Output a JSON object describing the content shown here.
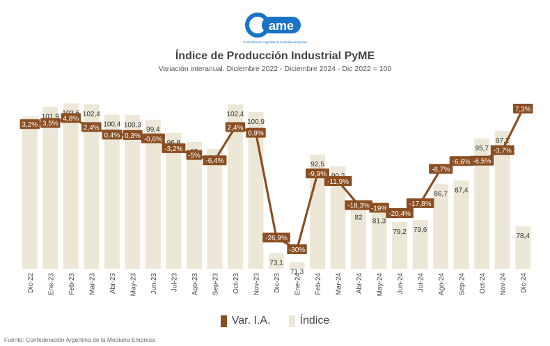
{
  "header": {
    "logo_text": "ame",
    "logo_caption": "Confederación Argentina de la Mediana Empresa",
    "title": "Índice de Producción Industrial PyME",
    "subtitle": "Variación interanual. Diciembre 2022 - Diciembre 2024 - Dic 2022 = 100"
  },
  "footer": {
    "source": "Fuente: Confederación Argentina de la Mediana Empresa"
  },
  "colors": {
    "bar": "#ece7d7",
    "line": "#8a4e22",
    "label_text": "#ffffff",
    "logo": "#1a73c7"
  },
  "chart_data": {
    "type": "bar",
    "categories": [
      "Dic-22",
      "Ene-23",
      "Feb-23",
      "Mar-23",
      "Abr-23",
      "May-23",
      "Jun-23",
      "Jul-23",
      "Ago-23",
      "Sep-23",
      "Oct-23",
      "Nov-23",
      "Dic-23",
      "Ene-24",
      "Feb-24",
      "Mar-24",
      "Abr-24",
      "May-24",
      "Jun-24",
      "Jul-24",
      "Ago-24",
      "Sep-24",
      "Oct-24",
      "Nov-24",
      "Dic-24"
    ],
    "series": [
      {
        "name": "Índice",
        "type": "bar",
        "values": [
          100,
          101.9,
          102.6,
          102.4,
          100.4,
          100.3,
          99.4,
          96.8,
          95,
          93.6,
          102.4,
          100.9,
          73.1,
          71.3,
          92.5,
          90.2,
          82,
          81.3,
          79.2,
          79.6,
          86.7,
          87.4,
          95.7,
          97.2,
          78.4
        ],
        "labels": [
          "100",
          "101,9",
          "102,6",
          "102,4",
          "100,4",
          "100,3",
          "99,4",
          "96,8",
          "95",
          "93,6",
          "102,4",
          "100,9",
          "73,1",
          "71,3",
          "92,5",
          "90,2",
          "82",
          "81,3",
          "79,2",
          "79,6",
          "86,7",
          "87,4",
          "95,7",
          "97,2",
          "78,4"
        ]
      },
      {
        "name": "Var. I.A.",
        "type": "line",
        "values": [
          3.2,
          3.5,
          4.8,
          2.4,
          0.4,
          0.3,
          -0.6,
          -3.2,
          -5,
          -6.4,
          2.4,
          0.9,
          -26.9,
          -30,
          -9.9,
          -11.9,
          -18.3,
          -19,
          -20.4,
          -17.8,
          -8.7,
          -6.6,
          -6.5,
          -3.7,
          7.3
        ],
        "labels": [
          "3,2%",
          "3,5%",
          "4,8%",
          "2,4%",
          "0,4%",
          "0,3%",
          "-0,6%",
          "-3,2%",
          "-5%",
          "-6,4%",
          "2,4%",
          "0,9%",
          "-26,9%",
          "-30%",
          "-9,9%",
          "-11,9%",
          "-18,3%",
          "-19%",
          "-20,4%",
          "-17,8%",
          "-8,7%",
          "-6,6%",
          "-6,5%",
          "-3,7%",
          "7,3%"
        ]
      }
    ],
    "legend": {
      "position": "bottom",
      "entries": [
        "Var. I.A.",
        "Índice"
      ]
    },
    "grid": false
  }
}
